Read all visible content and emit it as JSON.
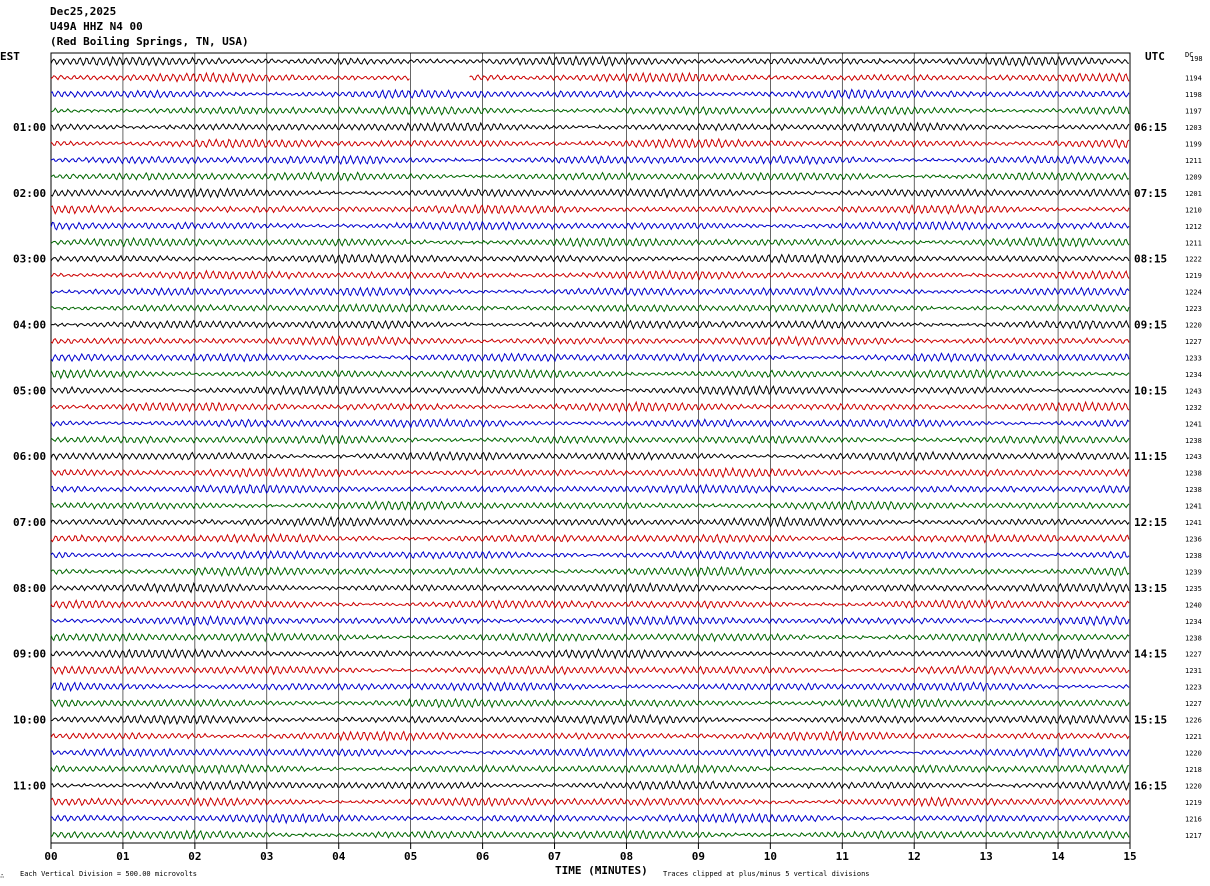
{
  "header": {
    "date": "Dec25,2025",
    "station": "U49A HHZ N4 00",
    "location": "(Red Boiling Springs, TN, USA)"
  },
  "left_timezone": "EST",
  "right_timezone": "UTC",
  "dc_header": "DC",
  "footer": {
    "scale_note": "Each Vertical Division =  500.00 microvolts",
    "clip_note": "Traces clipped at plus/minus 5 vertical divisions",
    "corner_mark": "∴"
  },
  "colors": {
    "trace_cycle": [
      "#000000",
      "#cc0000",
      "#0000cc",
      "#006600"
    ],
    "grid": "#000000"
  },
  "chart_data": {
    "type": "line",
    "title": "U49A HHZ N4 00",
    "xlabel": "TIME (MINUTES)",
    "ylabel": "",
    "x_ticks": [
      "00",
      "01",
      "02",
      "03",
      "04",
      "05",
      "06",
      "07",
      "08",
      "09",
      "10",
      "11",
      "12",
      "13",
      "14",
      "15"
    ],
    "xlim": [
      0,
      15
    ],
    "trace_count": 48,
    "trace_minutes": 15,
    "left_hour_labels": [
      "01:00",
      "02:00",
      "03:00",
      "04:00",
      "05:00",
      "06:00",
      "07:00",
      "08:00",
      "09:00",
      "10:00",
      "11:00"
    ],
    "right_hour_labels": [
      "06:15",
      "07:15",
      "08:15",
      "09:15",
      "10:15",
      "11:15",
      "12:15",
      "13:15",
      "14:15",
      "15:15",
      "16:15"
    ],
    "first_trace_dc_fragment": "198",
    "dc_offsets": [
      1194,
      1198,
      1197,
      1203,
      1199,
      1211,
      1209,
      1201,
      1210,
      1212,
      1211,
      1222,
      1219,
      1224,
      1223,
      1220,
      1227,
      1233,
      1234,
      1243,
      1232,
      1241,
      1238,
      1243,
      1238,
      1238,
      1241,
      1241,
      1236,
      1238,
      1239,
      1235,
      1240,
      1234,
      1238,
      1227,
      1231,
      1223,
      1227,
      1226,
      1221,
      1220,
      1218,
      1220,
      1219,
      1216,
      1217
    ],
    "gap": {
      "trace_index": 1,
      "start_minute": 5.0,
      "end_minute": 5.8
    }
  }
}
